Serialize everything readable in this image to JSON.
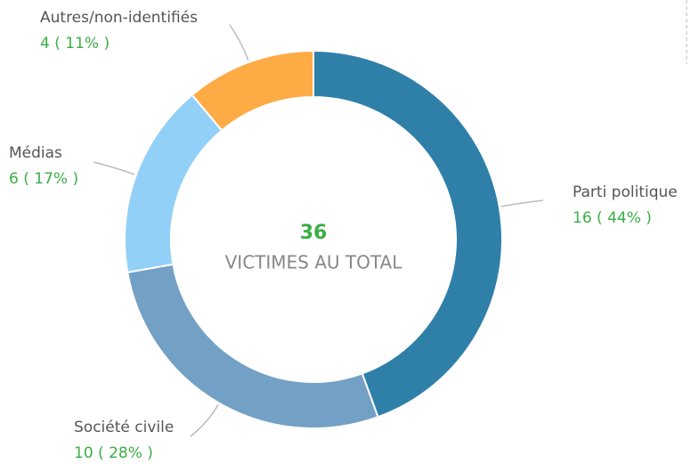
{
  "chart_data": {
    "type": "donut",
    "categories": [
      "Parti politique",
      "Société civile",
      "Médias",
      "Autres/non-identifiés"
    ],
    "values": [
      16,
      10,
      6,
      4
    ],
    "value_labels": [
      "16 ( 44% )",
      "10 ( 28% )",
      "6 ( 17% )",
      "4 ( 11% )"
    ],
    "colors": [
      "#2f80a9",
      "#73a0c5",
      "#93d0f8",
      "#fdab45"
    ],
    "total": 36,
    "center_label": "VICTIMES AU TOTAL"
  }
}
